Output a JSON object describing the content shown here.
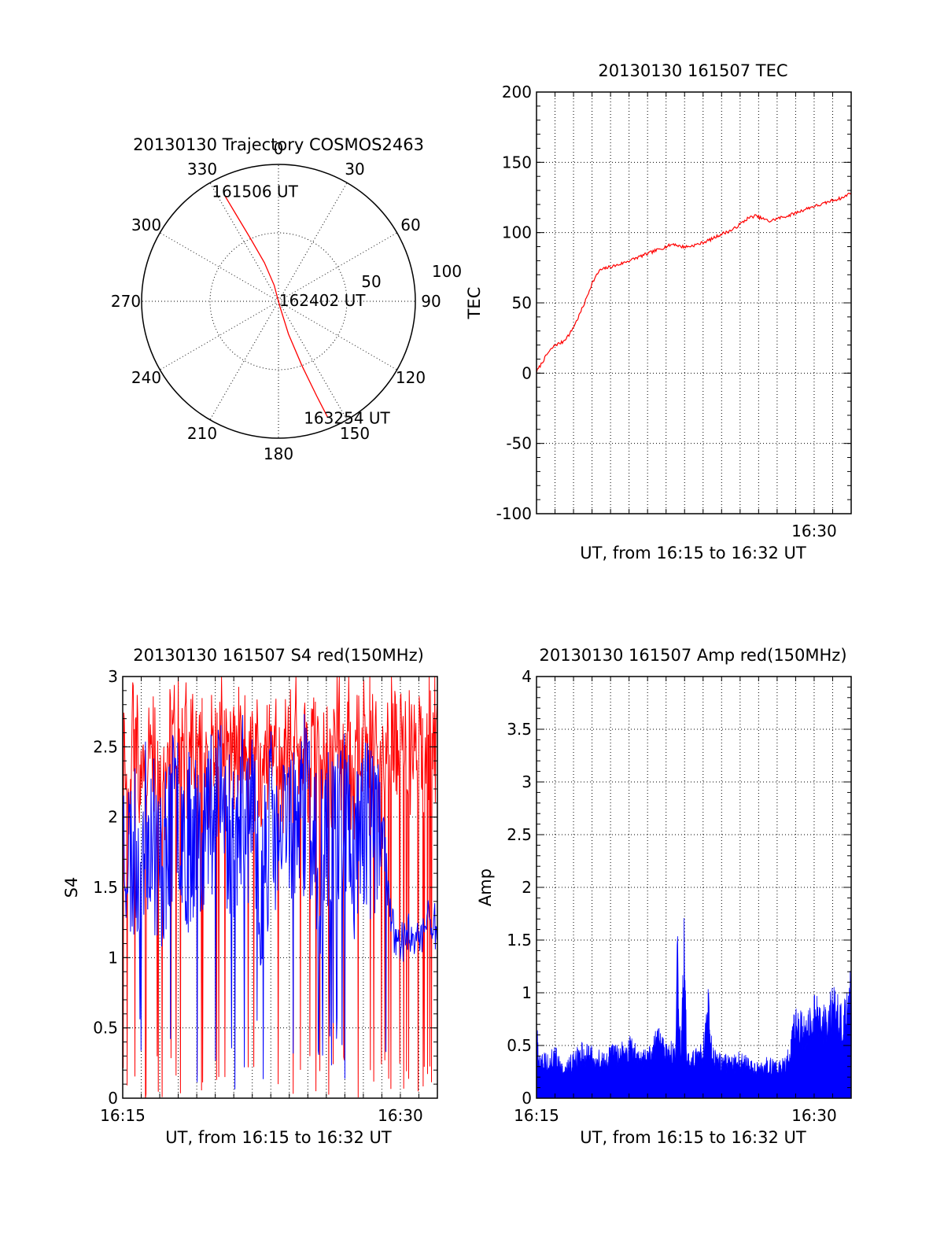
{
  "chart_data": [
    {
      "type": "polar",
      "title": "20130130 Trajectory COSMOS2463",
      "angle_labels": [
        "0",
        "30",
        "60",
        "90",
        "120",
        "150",
        "180",
        "210",
        "240",
        "270",
        "300",
        "330"
      ],
      "radius_labels": [
        "50",
        "100"
      ],
      "radius_range": [
        0,
        100
      ],
      "grid": true,
      "series": [
        {
          "color": "#ff0000",
          "points": [
            {
              "az": 333,
              "r": 88
            },
            {
              "az": 334,
              "r": 70
            },
            {
              "az": 336,
              "r": 50
            },
            {
              "az": 340,
              "r": 30
            },
            {
              "az": 345,
              "r": 12
            },
            {
              "az": 345,
              "r": 3
            },
            {
              "az": 165,
              "r": 4
            },
            {
              "az": 163,
              "r": 25
            },
            {
              "az": 160,
              "r": 50
            },
            {
              "az": 158,
              "r": 75
            },
            {
              "az": 157,
              "r": 92
            }
          ]
        }
      ],
      "annotations": [
        {
          "text": "161506 UT",
          "az": 350,
          "r": 82
        },
        {
          "text": "162402 UT",
          "az": 88,
          "r": 35
        },
        {
          "text": "163254 UT",
          "az": 148,
          "r": 100
        }
      ]
    },
    {
      "type": "line",
      "title": "20130130 161507 TEC",
      "xlabel": "UT, from 16:15 to 16:32 UT",
      "ylabel": "TEC",
      "xlim": [
        0,
        17
      ],
      "ylim": [
        -100,
        200
      ],
      "yticks": [
        "200",
        "150",
        "100",
        "50",
        "0",
        "-50",
        "-100"
      ],
      "xticks": [
        {
          "label": "16:30",
          "value": 15
        }
      ],
      "grid": true,
      "series": [
        {
          "color": "#ff0000",
          "x": [
            0.0,
            0.6,
            1.0,
            1.4,
            1.8,
            2.2,
            2.6,
            3.0,
            3.4,
            3.8,
            4.4,
            5.0,
            5.6,
            6.2,
            6.8,
            7.4,
            7.8,
            8.2,
            8.8,
            9.4,
            10.0,
            10.6,
            11.0,
            11.4,
            11.8,
            12.2,
            12.6,
            13.0,
            13.6,
            14.2,
            14.8,
            15.4,
            16.0,
            16.6,
            17.0
          ],
          "y": [
            1,
            14,
            20,
            22,
            28,
            38,
            50,
            64,
            73,
            75,
            77,
            80,
            83,
            86,
            89,
            92,
            90,
            90,
            92,
            95,
            99,
            102,
            106,
            110,
            112,
            110,
            108,
            110,
            112,
            115,
            118,
            120,
            123,
            125,
            129
          ]
        }
      ]
    },
    {
      "type": "line",
      "title": "20130130 161507 S4 red(150MHz)",
      "xlabel": "UT, from 16:15 to 16:32 UT",
      "ylabel": "S4",
      "xlim": [
        0,
        17
      ],
      "ylim": [
        0,
        3
      ],
      "yticks": [
        "3",
        "2.5",
        "2",
        "1.5",
        "1",
        "0.5",
        "0"
      ],
      "xticks": [
        {
          "label": "16:15",
          "value": 0
        },
        {
          "label": "16:30",
          "value": 15
        }
      ],
      "grid": true,
      "series": [
        {
          "color": "#ff0000",
          "x": [
            0.0,
            0.5,
            1.0,
            1.5,
            2.0,
            2.5,
            3.0,
            3.5,
            4.0,
            4.5,
            5.0,
            5.5,
            6.0,
            6.5,
            7.0,
            7.5,
            8.0,
            8.5,
            9.0,
            9.5,
            10.0,
            10.5,
            11.0,
            11.5,
            12.0,
            12.5,
            13.0,
            13.5,
            14.0,
            14.5,
            15.0,
            15.5,
            16.0,
            16.5,
            17.0
          ],
          "y": [
            2.7,
            2.9,
            2.8,
            3.0,
            2.6,
            2.9,
            3.0,
            2.8,
            2.9,
            2.7,
            3.0,
            2.9,
            2.8,
            3.0,
            2.9,
            2.7,
            3.0,
            2.8,
            2.9,
            3.0,
            2.8,
            2.9,
            2.7,
            3.0,
            2.9,
            2.8,
            2.9,
            3.0,
            2.7,
            2.9,
            3.0,
            2.8,
            2.9,
            3.0,
            2.9
          ]
        },
        {
          "color": "#0000ff",
          "x": [
            0.0,
            0.5,
            1.0,
            1.5,
            2.0,
            2.5,
            3.0,
            3.5,
            4.0,
            4.5,
            5.0,
            5.5,
            6.0,
            6.5,
            7.0,
            7.5,
            8.0,
            8.5,
            9.0,
            9.5,
            10.0,
            10.5,
            11.0,
            11.5,
            12.0,
            12.5,
            13.0,
            13.5,
            14.0,
            14.5,
            15.0,
            15.5,
            16.0,
            16.5,
            17.0
          ],
          "y": [
            1.9,
            1.7,
            1.8,
            2.0,
            1.6,
            1.9,
            2.1,
            1.8,
            2.0,
            1.9,
            2.2,
            2.0,
            1.8,
            2.1,
            1.9,
            1.5,
            2.0,
            1.7,
            2.1,
            1.9,
            2.2,
            1.6,
            1.8,
            2.0,
            2.1,
            1.7,
            2.0,
            1.9,
            2.0,
            1.2,
            1.1,
            1.2,
            1.1,
            1.3,
            1.2
          ]
        }
      ]
    },
    {
      "type": "area",
      "title": "20130130 161507 Amp red(150MHz)",
      "xlabel": "UT, from 16:15 to 16:32 UT",
      "ylabel": "Amp",
      "xlim": [
        0,
        17
      ],
      "ylim": [
        0,
        4
      ],
      "yticks": [
        "4",
        "3.5",
        "3",
        "2.5",
        "2",
        "1.5",
        "1",
        "0.5",
        "0"
      ],
      "xticks": [
        {
          "label": "16:15",
          "value": 0
        },
        {
          "label": "16:30",
          "value": 15
        }
      ],
      "grid": true,
      "series": [
        {
          "color": "#0000ff",
          "x": [
            0.0,
            0.2,
            0.5,
            1.0,
            1.5,
            2.0,
            2.5,
            3.0,
            3.5,
            4.0,
            4.5,
            5.0,
            5.5,
            6.0,
            6.5,
            7.0,
            7.5,
            7.6,
            7.8,
            8.0,
            8.1,
            8.3,
            8.5,
            9.0,
            9.3,
            9.5,
            10.0,
            10.5,
            11.0,
            11.5,
            12.0,
            12.5,
            13.0,
            13.5,
            14.0,
            14.5,
            15.0,
            15.5,
            16.0,
            16.5,
            17.0
          ],
          "y": [
            0.85,
            0.4,
            0.45,
            0.5,
            0.35,
            0.45,
            0.55,
            0.5,
            0.45,
            0.5,
            0.55,
            0.6,
            0.5,
            0.45,
            0.7,
            0.6,
            0.5,
            1.7,
            0.5,
            1.9,
            0.5,
            0.45,
            0.5,
            0.6,
            1.1,
            0.5,
            0.45,
            0.4,
            0.45,
            0.4,
            0.35,
            0.4,
            0.35,
            0.4,
            0.9,
            0.8,
            1.0,
            0.9,
            1.1,
            0.9,
            1.3
          ]
        }
      ]
    }
  ]
}
